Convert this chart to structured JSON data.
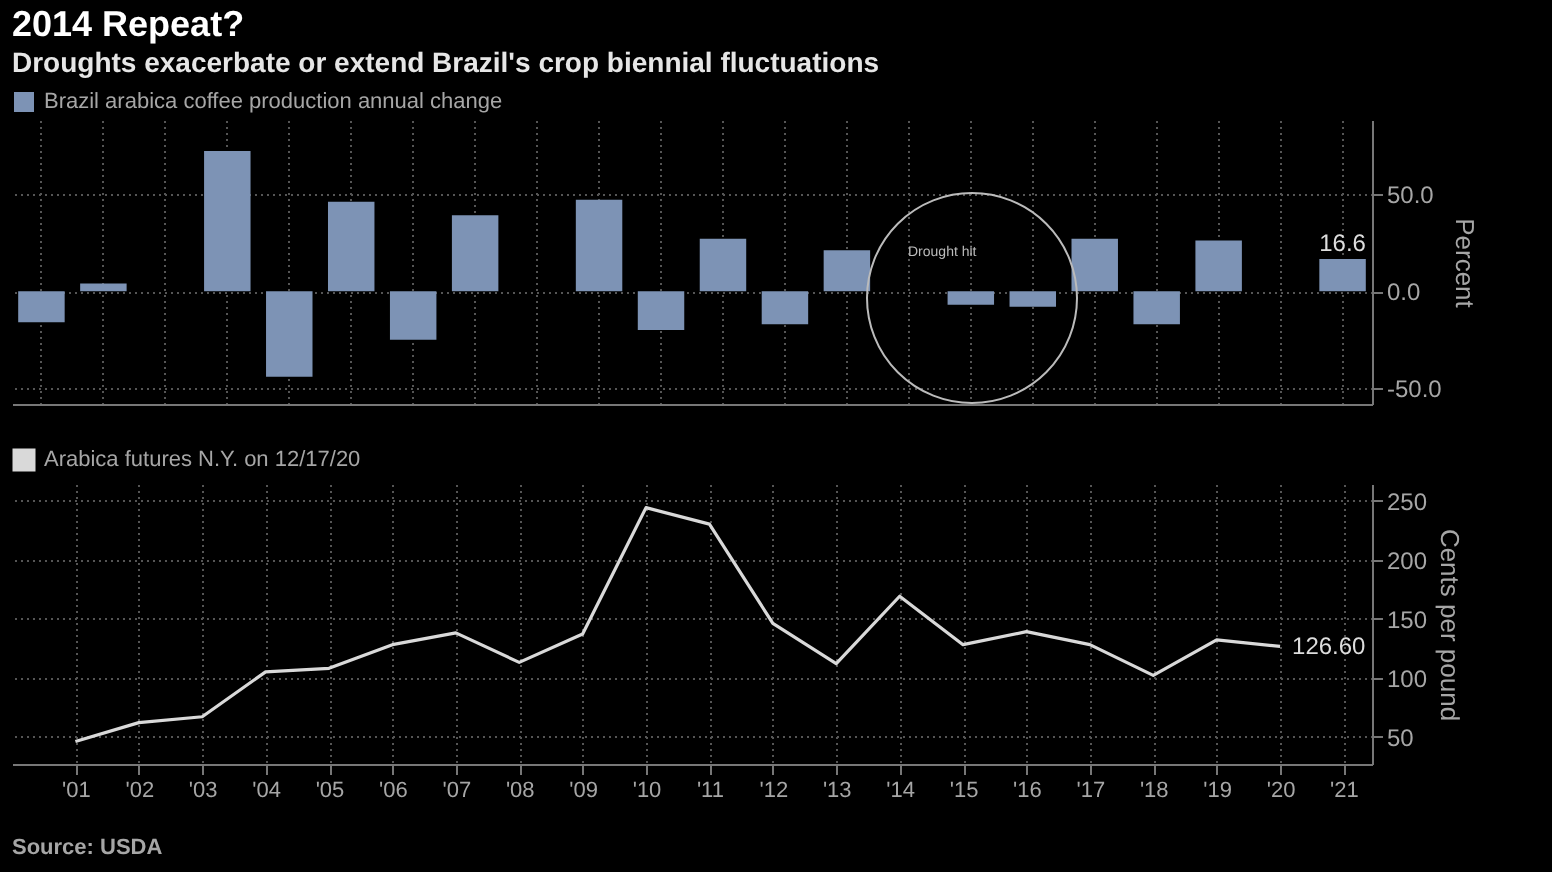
{
  "chart_data": [
    {
      "type": "bar",
      "title": "2014 Repeat?",
      "subtitle": "Droughts exacerbate or extend Brazil's crop biennial fluctuations",
      "ylabel": "Percent",
      "categories": [
        null,
        null,
        null,
        null,
        null,
        null,
        null,
        null,
        null,
        null,
        null,
        null,
        null,
        null,
        null,
        null,
        null,
        null,
        null,
        null,
        null,
        null
      ],
      "series": [
        {
          "name": "Brazil arabica coffee production annual change",
          "color": "#7d93b5",
          "values": [
            -16,
            4,
            null,
            72,
            -44,
            46,
            -25,
            39,
            null,
            47,
            -20,
            27,
            -17,
            21,
            null,
            -7,
            -8,
            27,
            -17,
            26,
            null,
            16.6
          ],
          "value_labels": [
            null,
            null,
            null,
            null,
            null,
            null,
            null,
            null,
            null,
            null,
            null,
            null,
            null,
            null,
            null,
            null,
            null,
            null,
            null,
            null,
            null,
            "16.6"
          ]
        }
      ],
      "ylim": [
        -58,
        88
      ],
      "yticks": [
        {
          "value": -50,
          "label": "-50.0"
        },
        {
          "value": 0,
          "label": "0.0"
        },
        {
          "value": 50,
          "label": "50.0"
        }
      ],
      "grid": true,
      "legend": "top left",
      "tick_labels": "y",
      "annotations": [
        "Drought hit"
      ]
    },
    {
      "type": "line",
      "ylabel": "Cents per pound",
      "x": [
        2001,
        2002,
        2003,
        2004,
        2005,
        2006,
        2007,
        2008,
        2009,
        2010,
        2011,
        2012,
        2013,
        2014,
        2015,
        2016,
        2017,
        2018,
        2019,
        2020
      ],
      "series": [
        {
          "name": "Arabica futures N.Y. on 12/17/20",
          "color": "#d9d9d9",
          "values": [
            46,
            62,
            67,
            105,
            108,
            128,
            138,
            113,
            137,
            244,
            230,
            146,
            112,
            169,
            128,
            139,
            128,
            102,
            132,
            126.6
          ],
          "value_labels": [
            null,
            null,
            null,
            null,
            null,
            null,
            null,
            null,
            null,
            null,
            null,
            null,
            null,
            null,
            null,
            null,
            null,
            null,
            null,
            "126.60"
          ]
        }
      ],
      "xlim": [
        2000,
        2021.45
      ],
      "xticks": [
        {
          "value": 2001,
          "label": "'01"
        },
        {
          "value": 2002,
          "label": "'02"
        },
        {
          "value": 2003,
          "label": "'03"
        },
        {
          "value": 2004,
          "label": "'04"
        },
        {
          "value": 2005,
          "label": "'05"
        },
        {
          "value": 2006,
          "label": "'06"
        },
        {
          "value": 2007,
          "label": "'07"
        },
        {
          "value": 2008,
          "label": "'08"
        },
        {
          "value": 2009,
          "label": "'09"
        },
        {
          "value": 2010,
          "label": "'10"
        },
        {
          "value": 2011,
          "label": "'11"
        },
        {
          "value": 2012,
          "label": "'12"
        },
        {
          "value": 2013,
          "label": "'13"
        },
        {
          "value": 2014,
          "label": "'14"
        },
        {
          "value": 2015,
          "label": "'15"
        },
        {
          "value": 2016,
          "label": "'16"
        },
        {
          "value": 2017,
          "label": "'17"
        },
        {
          "value": 2018,
          "label": "'18"
        },
        {
          "value": 2019,
          "label": "'19"
        },
        {
          "value": 2020,
          "label": "'20"
        },
        {
          "value": 2021,
          "label": "'21"
        }
      ],
      "ylim": [
        27,
        264
      ],
      "yticks": [
        50,
        100,
        150,
        200,
        250
      ],
      "grid": true,
      "legend": "top left",
      "annotations": [
        "Source: USDA"
      ]
    }
  ]
}
